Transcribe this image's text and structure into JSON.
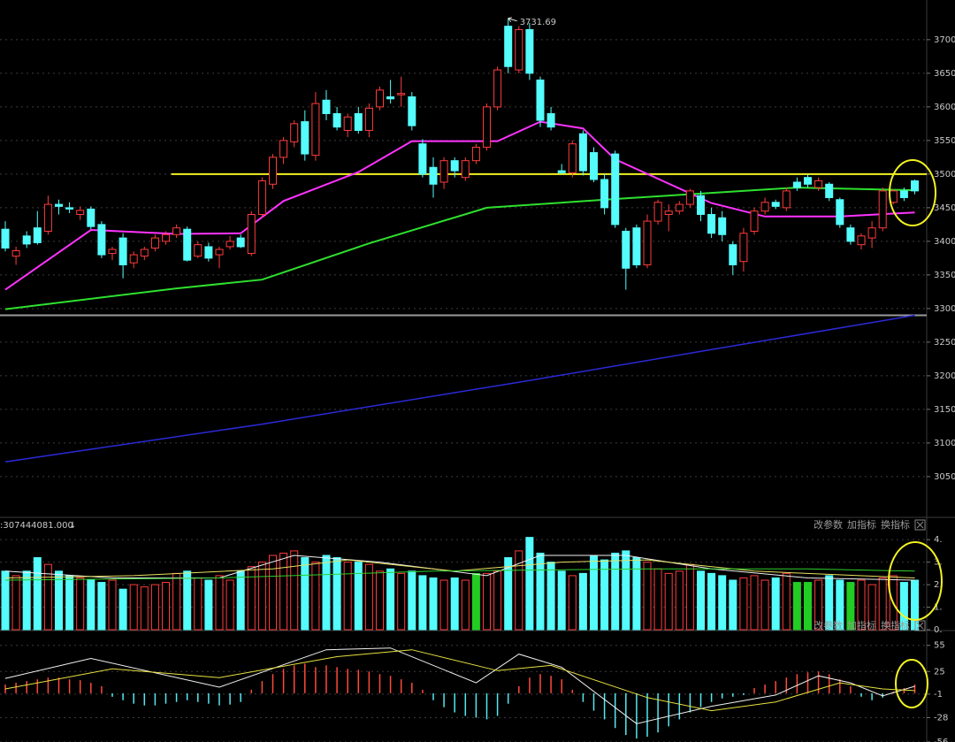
{
  "chart_data": [
    {
      "type": "candlestick",
      "ylim": [
        2992,
        3759
      ],
      "yticks": [
        3050,
        3100,
        3150,
        3200,
        3250,
        3300,
        3350,
        3400,
        3450,
        3500,
        3550,
        3600,
        3650,
        3700
      ],
      "grid": true,
      "up_color": "#ff3b3b",
      "down_color": "#54fcfc",
      "candles": [
        [
          3418,
          3430,
          3385,
          3390
        ],
        [
          3378,
          3392,
          3365,
          3386
        ],
        [
          3408,
          3415,
          3390,
          3396
        ],
        [
          3420,
          3445,
          3395,
          3398
        ],
        [
          3415,
          3468,
          3410,
          3455
        ],
        [
          3455,
          3462,
          3440,
          3452
        ],
        [
          3450,
          3458,
          3442,
          3448
        ],
        [
          3440,
          3452,
          3432,
          3446
        ],
        [
          3448,
          3452,
          3418,
          3422
        ],
        [
          3425,
          3430,
          3375,
          3380
        ],
        [
          3382,
          3392,
          3372,
          3388
        ],
        [
          3405,
          3412,
          3345,
          3365
        ],
        [
          3368,
          3385,
          3360,
          3380
        ],
        [
          3378,
          3392,
          3372,
          3388
        ],
        [
          3390,
          3410,
          3385,
          3405
        ],
        [
          3400,
          3415,
          3395,
          3410
        ],
        [
          3410,
          3425,
          3405,
          3420
        ],
        [
          3418,
          3422,
          3370,
          3372
        ],
        [
          3378,
          3400,
          3375,
          3395
        ],
        [
          3392,
          3398,
          3370,
          3375
        ],
        [
          3380,
          3392,
          3360,
          3388
        ],
        [
          3392,
          3408,
          3388,
          3400
        ],
        [
          3405,
          3410,
          3390,
          3392
        ],
        [
          3382,
          3445,
          3378,
          3440
        ],
        [
          3440,
          3495,
          3435,
          3490
        ],
        [
          3485,
          3530,
          3478,
          3525
        ],
        [
          3525,
          3555,
          3515,
          3550
        ],
        [
          3548,
          3580,
          3540,
          3575
        ],
        [
          3578,
          3595,
          3520,
          3530
        ],
        [
          3528,
          3622,
          3520,
          3605
        ],
        [
          3610,
          3625,
          3580,
          3590
        ],
        [
          3590,
          3600,
          3565,
          3570
        ],
        [
          3565,
          3590,
          3555,
          3585
        ],
        [
          3590,
          3600,
          3560,
          3565
        ],
        [
          3565,
          3605,
          3555,
          3598
        ],
        [
          3600,
          3630,
          3595,
          3625
        ],
        [
          3615,
          3640,
          3605,
          3612
        ],
        [
          3618,
          3645,
          3600,
          3620
        ],
        [
          3615,
          3622,
          3565,
          3572
        ],
        [
          3545,
          3552,
          3495,
          3500
        ],
        [
          3510,
          3525,
          3465,
          3485
        ],
        [
          3488,
          3525,
          3478,
          3520
        ],
        [
          3520,
          3525,
          3495,
          3505
        ],
        [
          3495,
          3525,
          3490,
          3520
        ],
        [
          3520,
          3545,
          3515,
          3540
        ],
        [
          3540,
          3605,
          3535,
          3600
        ],
        [
          3600,
          3660,
          3595,
          3655
        ],
        [
          3720,
          3732,
          3650,
          3660
        ],
        [
          3655,
          3720,
          3650,
          3715
        ],
        [
          3715,
          3725,
          3640,
          3650
        ],
        [
          3640,
          3645,
          3570,
          3580
        ],
        [
          3590,
          3600,
          3565,
          3570
        ],
        [
          3505,
          3515,
          3500,
          3502
        ],
        [
          3502,
          3550,
          3495,
          3545
        ],
        [
          3560,
          3565,
          3498,
          3505
        ],
        [
          3532,
          3540,
          3488,
          3492
        ],
        [
          3492,
          3500,
          3440,
          3450
        ],
        [
          3530,
          3535,
          3420,
          3425
        ],
        [
          3415,
          3420,
          3328,
          3360
        ],
        [
          3420,
          3425,
          3360,
          3365
        ],
        [
          3365,
          3440,
          3360,
          3430
        ],
        [
          3430,
          3462,
          3425,
          3458
        ],
        [
          3440,
          3455,
          3415,
          3445
        ],
        [
          3445,
          3460,
          3440,
          3455
        ],
        [
          3455,
          3478,
          3450,
          3475
        ],
        [
          3468,
          3475,
          3430,
          3440
        ],
        [
          3440,
          3450,
          3405,
          3412
        ],
        [
          3435,
          3445,
          3400,
          3410
        ],
        [
          3395,
          3400,
          3350,
          3365
        ],
        [
          3370,
          3420,
          3355,
          3412
        ],
        [
          3415,
          3450,
          3410,
          3445
        ],
        [
          3445,
          3465,
          3440,
          3458
        ],
        [
          3458,
          3462,
          3448,
          3452
        ],
        [
          3450,
          3480,
          3445,
          3475
        ],
        [
          3488,
          3495,
          3475,
          3480
        ],
        [
          3495,
          3500,
          3480,
          3485
        ],
        [
          3480,
          3495,
          3475,
          3490
        ],
        [
          3485,
          3488,
          3460,
          3465
        ],
        [
          3462,
          3465,
          3420,
          3425
        ],
        [
          3420,
          3425,
          3395,
          3400
        ],
        [
          3395,
          3412,
          3388,
          3408
        ],
        [
          3405,
          3430,
          3390,
          3420
        ],
        [
          3420,
          3480,
          3415,
          3475
        ],
        [
          3458,
          3478,
          3455,
          3475
        ],
        [
          3475,
          3480,
          3460,
          3465
        ],
        [
          3490,
          3492,
          3470,
          3475
        ]
      ],
      "lines": [
        {
          "color": "#ff33ff",
          "width": 2,
          "x": [
            0,
            8,
            16,
            22,
            26,
            33,
            38,
            46,
            50,
            54,
            57,
            66,
            71,
            78,
            85
          ],
          "values": [
            3328,
            3417,
            3411,
            3412,
            3460,
            3503,
            3549,
            3549,
            3578,
            3568,
            3522,
            3457,
            3437,
            3437,
            3443
          ]
        },
        {
          "color": "#2ee02e",
          "width": 2,
          "x": [
            0,
            16,
            24,
            34,
            45,
            57,
            66,
            74,
            85
          ],
          "values": [
            3299,
            3330,
            3343,
            3397,
            3450,
            3463,
            3472,
            3480,
            3476
          ]
        },
        {
          "color": "#2a2ad8",
          "width": 1.5,
          "x": [
            0,
            24,
            49,
            66,
            85
          ],
          "values": [
            3072,
            3128,
            3193,
            3239,
            3290
          ]
        }
      ],
      "hlines": [
        {
          "value": 3500,
          "from": 16,
          "color": "#f2f222"
        },
        {
          "value": 3290,
          "from": 0,
          "color": "#9a9a9a"
        }
      ],
      "annotations": [
        {
          "label": "3731.69",
          "value": 3731.69,
          "x": 47
        }
      ]
    },
    {
      "type": "volume",
      "header": ":307444081.000",
      "header_arrow": "↓",
      "buttons": [
        "改参数",
        "加指标",
        "换指标"
      ],
      "ylim": [
        0,
        4.4
      ],
      "yticks": [
        {
          "value": 0,
          "label": "0."
        },
        {
          "value": 1,
          "label": "1."
        },
        {
          "value": 2,
          "label": "2."
        },
        {
          "value": 3,
          "label": "3."
        },
        {
          "value": 4,
          "label": "4."
        }
      ],
      "grid": true,
      "highlight_color": "#22cc22",
      "highlight_bars": [
        44,
        74,
        75,
        79
      ],
      "values": [
        2.6,
        2.4,
        2.6,
        3.2,
        2.9,
        2.6,
        2.4,
        2.3,
        2.2,
        2.1,
        2.2,
        1.8,
        2.0,
        1.9,
        2.0,
        2.1,
        2.5,
        2.6,
        2.3,
        2.2,
        2.4,
        2.2,
        2.6,
        2.8,
        3.0,
        3.3,
        3.4,
        3.5,
        3.2,
        3.0,
        3.3,
        3.2,
        3.0,
        3.0,
        2.9,
        2.6,
        2.7,
        2.5,
        2.6,
        2.4,
        2.3,
        2.2,
        2.3,
        2.2,
        2.5,
        2.5,
        2.6,
        3.2,
        3.5,
        4.1,
        3.4,
        3.0,
        2.6,
        2.4,
        2.5,
        3.3,
        3.1,
        3.4,
        3.5,
        3.2,
        3.0,
        2.7,
        2.5,
        2.6,
        2.9,
        2.6,
        2.5,
        2.4,
        2.2,
        2.3,
        2.4,
        2.2,
        2.3,
        2.5,
        2.1,
        2.1,
        2.2,
        2.4,
        2.2,
        2.1,
        2.2,
        2.0,
        2.3,
        2.4,
        2.1,
        2.2
      ],
      "lines": [
        {
          "color": "#f0f0f0",
          "width": 1,
          "x": [
            0,
            10,
            20,
            27,
            35,
            45,
            50,
            58,
            66,
            75,
            85
          ],
          "values": [
            2.6,
            2.3,
            2.3,
            3.3,
            3.0,
            2.4,
            3.3,
            3.3,
            2.7,
            2.3,
            2.2
          ]
        },
        {
          "color": "#e8e060",
          "width": 1,
          "x": [
            0,
            12,
            25,
            32,
            42,
            52,
            60,
            70,
            85
          ],
          "values": [
            2.3,
            2.4,
            2.7,
            3.1,
            2.6,
            3.0,
            3.1,
            2.6,
            2.3
          ]
        },
        {
          "color": "#2ed02e",
          "width": 1,
          "x": [
            0,
            20,
            40,
            60,
            75,
            85
          ],
          "values": [
            2.2,
            2.3,
            2.6,
            2.7,
            2.7,
            2.6
          ]
        }
      ]
    },
    {
      "type": "macd",
      "buttons": [
        "改参数",
        "加指标",
        "换指标"
      ],
      "ylim": [
        -56,
        71
      ],
      "yticks": [
        -56,
        -28,
        -1,
        25,
        55
      ],
      "grid": true,
      "up_color": "#ff4a3a",
      "down_color": "#54e8f0",
      "values": [
        10,
        12,
        14,
        16,
        18,
        18,
        16,
        15,
        12,
        8,
        -4,
        -8,
        -12,
        -14,
        -14,
        -12,
        -10,
        -8,
        -10,
        -12,
        -14,
        -13,
        -10,
        4,
        14,
        22,
        28,
        32,
        34,
        30,
        32,
        30,
        28,
        27,
        25,
        22,
        20,
        16,
        12,
        4,
        -8,
        -16,
        -22,
        -26,
        -28,
        -30,
        -26,
        -12,
        8,
        18,
        22,
        20,
        16,
        4,
        -10,
        -20,
        -30,
        -40,
        -48,
        -52,
        -50,
        -45,
        -38,
        -30,
        -22,
        -16,
        -10,
        -6,
        -4,
        -2,
        6,
        10,
        14,
        18,
        22,
        24,
        25,
        22,
        16,
        8,
        -4,
        -8,
        -5,
        2,
        6,
        10
      ],
      "lines": [
        {
          "color": "#f0f0f0",
          "width": 1,
          "x": [
            0,
            8,
            20,
            30,
            36,
            44,
            48,
            52,
            59,
            66,
            72,
            76,
            79,
            82,
            85
          ],
          "values": [
            17,
            40,
            7,
            50,
            52,
            12,
            45,
            30,
            -35,
            -15,
            -2,
            20,
            12,
            -3,
            8
          ]
        },
        {
          "color": "#e6e040",
          "width": 1,
          "x": [
            0,
            10,
            20,
            31,
            38,
            46,
            51,
            60,
            66,
            72,
            78,
            82,
            85
          ],
          "values": [
            5,
            28,
            18,
            42,
            50,
            26,
            32,
            -5,
            -20,
            -10,
            12,
            5,
            3
          ]
        }
      ]
    }
  ]
}
